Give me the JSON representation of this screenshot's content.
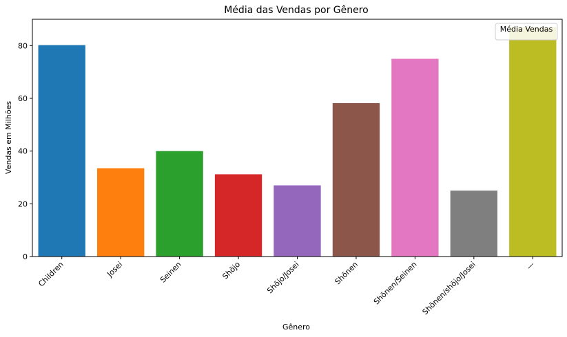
{
  "chart_data": {
    "type": "bar",
    "title": "Média das Vendas por Gênero",
    "xlabel": "Gênero",
    "ylabel": "Vendas em Milhões",
    "categories": [
      "Children",
      "Josei",
      "Seinen",
      "Shōjo",
      "Shōjo/Josei",
      "Shōnen",
      "Shōnen/Seinen",
      "Shōnen/shōjo/Josei",
      "—"
    ],
    "values": [
      80.2,
      33.5,
      40.0,
      31.2,
      27.0,
      58.2,
      75.0,
      25.0,
      87.0
    ],
    "colors": [
      "#1f77b4",
      "#ff7f0e",
      "#2ca02c",
      "#d62728",
      "#9467bd",
      "#8c564b",
      "#e377c2",
      "#7f7f7f",
      "#bcbd22"
    ],
    "ylim": [
      0,
      90
    ],
    "yticks": [
      0,
      20,
      40,
      60,
      80
    ],
    "legend": {
      "label": "Média Vendas",
      "placement": "top-right"
    },
    "grid": false
  }
}
